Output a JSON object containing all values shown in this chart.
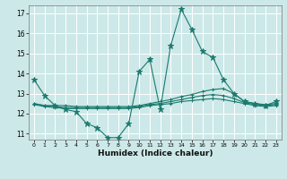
{
  "xlabel": "Humidex (Indice chaleur)",
  "bg_color": "#cde8e8",
  "grid_color": "#ffffff",
  "line_color": "#1a7a6e",
  "xlim": [
    -0.5,
    23.5
  ],
  "ylim": [
    10.7,
    17.4
  ],
  "yticks": [
    11,
    12,
    13,
    14,
    15,
    16,
    17
  ],
  "xticks": [
    0,
    1,
    2,
    3,
    4,
    5,
    6,
    7,
    8,
    9,
    10,
    11,
    12,
    13,
    14,
    15,
    16,
    17,
    18,
    19,
    20,
    21,
    22,
    23
  ],
  "series": [
    {
      "marker": "*",
      "x": [
        0,
        1,
        2,
        3,
        4,
        5,
        6,
        7,
        8,
        9,
        10,
        11,
        12,
        13,
        14,
        15,
        16,
        17,
        18,
        19,
        20,
        21,
        22,
        23
      ],
      "y": [
        13.7,
        12.9,
        12.4,
        12.2,
        12.1,
        11.5,
        11.3,
        10.8,
        10.8,
        11.5,
        14.1,
        14.7,
        12.2,
        15.4,
        17.2,
        16.2,
        15.1,
        14.8,
        13.7,
        13.0,
        12.6,
        12.5,
        12.4,
        12.6
      ]
    },
    {
      "marker": "+",
      "x": [
        0,
        1,
        2,
        3,
        4,
        5,
        6,
        7,
        8,
        9,
        10,
        11,
        12,
        13,
        14,
        15,
        16,
        17,
        18,
        19,
        20,
        21,
        22,
        23
      ],
      "y": [
        12.5,
        12.4,
        12.4,
        12.4,
        12.35,
        12.35,
        12.35,
        12.35,
        12.35,
        12.35,
        12.4,
        12.5,
        12.6,
        12.7,
        12.85,
        12.95,
        13.1,
        13.2,
        13.25,
        13.0,
        12.6,
        12.5,
        12.45,
        12.5
      ]
    },
    {
      "marker": "+",
      "x": [
        0,
        1,
        2,
        3,
        4,
        5,
        6,
        7,
        8,
        9,
        10,
        11,
        12,
        13,
        14,
        15,
        16,
        17,
        18,
        19,
        20,
        21,
        22,
        23
      ],
      "y": [
        12.5,
        12.4,
        12.35,
        12.3,
        12.3,
        12.3,
        12.3,
        12.3,
        12.3,
        12.3,
        12.35,
        12.45,
        12.5,
        12.6,
        12.7,
        12.8,
        12.9,
        12.95,
        12.9,
        12.75,
        12.55,
        12.45,
        12.4,
        12.45
      ]
    },
    {
      "marker": "+",
      "x": [
        0,
        1,
        2,
        3,
        4,
        5,
        6,
        7,
        8,
        9,
        10,
        11,
        12,
        13,
        14,
        15,
        16,
        17,
        18,
        19,
        20,
        21,
        22,
        23
      ],
      "y": [
        12.45,
        12.35,
        12.3,
        12.25,
        12.25,
        12.25,
        12.25,
        12.25,
        12.25,
        12.25,
        12.3,
        12.4,
        12.45,
        12.5,
        12.6,
        12.65,
        12.7,
        12.75,
        12.7,
        12.6,
        12.5,
        12.4,
        12.35,
        12.4
      ]
    }
  ]
}
